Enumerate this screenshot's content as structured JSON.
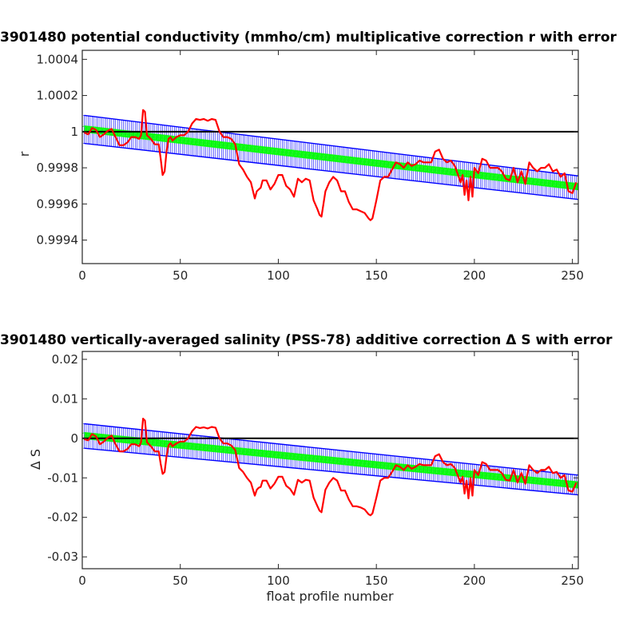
{
  "figure": {
    "background": "#ffffff"
  },
  "colors": {
    "data": "#ff0000",
    "fit": "#00ff00",
    "error_bounds": "#0000ff",
    "reference": "#000000",
    "axes": "#262626"
  },
  "chart_data": [
    {
      "type": "line",
      "title": "3901480 potential conductivity (mmho/cm) multiplicative correction r with error",
      "xlabel": "",
      "ylabel": "r",
      "xlim": [
        0,
        253
      ],
      "ylim": [
        0.99927,
        1.00045
      ],
      "x_ticks": [
        0,
        50,
        100,
        150,
        200,
        250
      ],
      "x_tick_labels": [
        "0",
        "50",
        "100",
        "150",
        "200",
        "250"
      ],
      "y_ticks": [
        0.9994,
        0.9996,
        0.9998,
        1.0,
        1.0002,
        1.0004
      ],
      "y_tick_labels": [
        "0.9994",
        "0.9996",
        "0.9998",
        "1",
        "1.0002",
        "1.0004"
      ],
      "reference_line": 1.0,
      "fit": {
        "name": "fit",
        "x": [
          1,
          253
        ],
        "y": [
          1.000015,
          0.999695
        ]
      },
      "fit_upper": {
        "name": "upper error",
        "x": [
          1,
          253
        ],
        "y": [
          1.00009,
          0.999755
        ]
      },
      "fit_lower": {
        "name": "lower error",
        "x": [
          1,
          253
        ],
        "y": [
          0.999935,
          0.999625
        ]
      },
      "series": [
        {
          "name": "profile",
          "x": [
            1,
            3,
            5,
            7,
            9,
            11,
            13,
            15,
            17,
            19,
            21,
            23,
            25,
            27,
            29,
            30,
            31,
            32,
            33,
            35,
            37,
            39,
            40,
            41,
            42,
            43,
            44,
            45,
            46,
            48,
            50,
            52,
            54,
            56,
            58,
            60,
            62,
            64,
            66,
            68,
            70,
            72,
            74,
            76,
            78,
            80,
            82,
            84,
            86,
            88,
            89,
            90,
            91,
            92,
            94,
            96,
            98,
            100,
            102,
            104,
            106,
            108,
            110,
            112,
            114,
            116,
            118,
            120,
            121,
            122,
            124,
            126,
            128,
            130,
            132,
            134,
            136,
            138,
            140,
            142,
            144,
            146,
            147,
            148,
            150,
            152,
            154,
            156,
            158,
            160,
            162,
            164,
            166,
            168,
            170,
            172,
            174,
            176,
            178,
            180,
            182,
            184,
            186,
            188,
            190,
            192,
            193,
            194,
            195,
            196,
            197,
            198,
            199,
            200,
            202,
            204,
            206,
            208,
            210,
            212,
            214,
            216,
            218,
            220,
            222,
            224,
            226,
            228,
            230,
            232,
            234,
            236,
            238,
            240,
            242,
            244,
            246,
            248,
            250,
            252
          ],
          "y": [
            0.999995,
            0.999985,
            1.00002,
            1.00001,
            0.99997,
            0.999985,
            1.000005,
            1.000015,
            0.99997,
            0.999925,
            0.999925,
            0.99994,
            0.99997,
            0.99997,
            0.99996,
            0.99998,
            1.00012,
            1.00011,
            0.99998,
            0.99996,
            0.99993,
            0.99993,
            0.99985,
            0.99976,
            0.99978,
            0.99989,
            0.99996,
            0.99997,
            0.99995,
            0.99997,
            0.99998,
            0.99998,
            1.0,
            1.000045,
            1.00007,
            1.000065,
            1.00007,
            1.00006,
            1.00007,
            1.000065,
            1.0,
            0.99997,
            0.99997,
            0.99996,
            0.99993,
            0.99982,
            0.99979,
            0.99975,
            0.99972,
            0.99963,
            0.99967,
            0.99968,
            0.99969,
            0.99973,
            0.99973,
            0.99968,
            0.99971,
            0.99976,
            0.99976,
            0.9997,
            0.99968,
            0.99964,
            0.99974,
            0.99972,
            0.99974,
            0.99973,
            0.99962,
            0.99957,
            0.99954,
            0.99953,
            0.99967,
            0.99972,
            0.99975,
            0.99973,
            0.99967,
            0.99967,
            0.99961,
            0.99957,
            0.99957,
            0.99956,
            0.99955,
            0.99952,
            0.99951,
            0.99952,
            0.99962,
            0.99973,
            0.99975,
            0.99975,
            0.99979,
            0.99983,
            0.99982,
            0.9998,
            0.99983,
            0.99981,
            0.99982,
            0.99984,
            0.99983,
            0.99983,
            0.99983,
            0.99989,
            0.9999,
            0.99985,
            0.99983,
            0.99984,
            0.99981,
            0.99975,
            0.99972,
            0.99976,
            0.99965,
            0.99973,
            0.99962,
            0.99975,
            0.99964,
            0.9998,
            0.99977,
            0.99985,
            0.99984,
            0.9998,
            0.9998,
            0.9998,
            0.99978,
            0.99974,
            0.99973,
            0.9998,
            0.99972,
            0.99978,
            0.99971,
            0.99983,
            0.9998,
            0.99978,
            0.9998,
            0.9998,
            0.99982,
            0.99978,
            0.99979,
            0.99975,
            0.99977,
            0.99967,
            0.99966,
            0.99972
          ]
        }
      ]
    },
    {
      "type": "line",
      "title": "3901480 vertically-averaged salinity (PSS-78) additive correction Δ S with error",
      "xlabel": "float profile number",
      "ylabel": "Δ S",
      "xlim": [
        0,
        253
      ],
      "ylim": [
        -0.033,
        0.022
      ],
      "x_ticks": [
        0,
        50,
        100,
        150,
        200,
        250
      ],
      "x_tick_labels": [
        "0",
        "50",
        "100",
        "150",
        "200",
        "250"
      ],
      "y_ticks": [
        -0.03,
        -0.02,
        -0.01,
        0,
        0.01,
        0.02
      ],
      "y_tick_labels": [
        "-0.03",
        "-0.02",
        "-0.01",
        "0",
        "0.01",
        "0.02"
      ],
      "reference_line": 0,
      "fit": {
        "name": "fit",
        "x": [
          1,
          253
        ],
        "y": [
          0.0007,
          -0.0118
        ]
      },
      "fit_upper": {
        "name": "upper error",
        "x": [
          1,
          253
        ],
        "y": [
          0.0037,
          -0.0093
        ]
      },
      "fit_lower": {
        "name": "lower error",
        "x": [
          1,
          253
        ],
        "y": [
          -0.0025,
          -0.0143
        ]
      },
      "series": [
        {
          "name": "profile",
          "x": [
            1,
            3,
            5,
            7,
            9,
            11,
            13,
            15,
            17,
            19,
            21,
            23,
            25,
            27,
            29,
            30,
            31,
            32,
            33,
            35,
            37,
            39,
            40,
            41,
            42,
            43,
            44,
            45,
            46,
            48,
            50,
            52,
            54,
            56,
            58,
            60,
            62,
            64,
            66,
            68,
            70,
            72,
            74,
            76,
            78,
            80,
            82,
            84,
            86,
            88,
            89,
            90,
            91,
            92,
            94,
            96,
            98,
            100,
            102,
            104,
            106,
            108,
            110,
            112,
            114,
            116,
            118,
            120,
            121,
            122,
            124,
            126,
            128,
            130,
            132,
            134,
            136,
            138,
            140,
            142,
            144,
            146,
            147,
            148,
            150,
            152,
            154,
            156,
            158,
            160,
            162,
            164,
            166,
            168,
            170,
            172,
            174,
            176,
            178,
            180,
            182,
            184,
            186,
            188,
            190,
            192,
            193,
            194,
            195,
            196,
            197,
            198,
            199,
            200,
            202,
            204,
            206,
            208,
            210,
            212,
            214,
            216,
            218,
            220,
            222,
            224,
            226,
            228,
            230,
            232,
            234,
            236,
            238,
            240,
            242,
            244,
            246,
            248,
            250,
            252
          ],
          "y": [
            -0.0002,
            -0.0005,
            0.0011,
            0.0005,
            -0.0015,
            -0.0008,
            0.0002,
            0.0007,
            -0.0015,
            -0.0033,
            -0.0033,
            -0.0027,
            -0.0015,
            -0.0015,
            -0.002,
            -0.001,
            0.005,
            0.0045,
            -0.001,
            -0.002,
            -0.0033,
            -0.0033,
            -0.0065,
            -0.009,
            -0.0085,
            -0.0045,
            -0.0018,
            -0.0012,
            -0.002,
            -0.0013,
            -0.0008,
            -0.0008,
            0.0,
            0.0018,
            0.0029,
            0.0026,
            0.0028,
            0.0025,
            0.0029,
            0.0027,
            0.0,
            -0.0013,
            -0.0013,
            -0.0018,
            -0.003,
            -0.0075,
            -0.0085,
            -0.01,
            -0.0112,
            -0.0145,
            -0.013,
            -0.0125,
            -0.0123,
            -0.0107,
            -0.0107,
            -0.0127,
            -0.0115,
            -0.0097,
            -0.0097,
            -0.012,
            -0.0128,
            -0.0143,
            -0.0105,
            -0.0112,
            -0.0105,
            -0.0107,
            -0.015,
            -0.0172,
            -0.0183,
            -0.0187,
            -0.013,
            -0.0112,
            -0.01,
            -0.0107,
            -0.0132,
            -0.0132,
            -0.0155,
            -0.0172,
            -0.0172,
            -0.0175,
            -0.018,
            -0.0192,
            -0.0195,
            -0.019,
            -0.015,
            -0.0107,
            -0.01,
            -0.01,
            -0.0085,
            -0.0068,
            -0.0072,
            -0.008,
            -0.0068,
            -0.0077,
            -0.0072,
            -0.0065,
            -0.0068,
            -0.0068,
            -0.0068,
            -0.0045,
            -0.004,
            -0.006,
            -0.0068,
            -0.0065,
            -0.0075,
            -0.01,
            -0.0112,
            -0.0097,
            -0.014,
            -0.0107,
            -0.0152,
            -0.01,
            -0.0145,
            -0.008,
            -0.0093,
            -0.006,
            -0.0065,
            -0.008,
            -0.008,
            -0.008,
            -0.0088,
            -0.0105,
            -0.0107,
            -0.008,
            -0.0112,
            -0.0088,
            -0.0115,
            -0.0068,
            -0.008,
            -0.0088,
            -0.008,
            -0.008,
            -0.0072,
            -0.0088,
            -0.0085,
            -0.01,
            -0.0093,
            -0.0132,
            -0.0135,
            -0.0112
          ]
        }
      ]
    }
  ]
}
